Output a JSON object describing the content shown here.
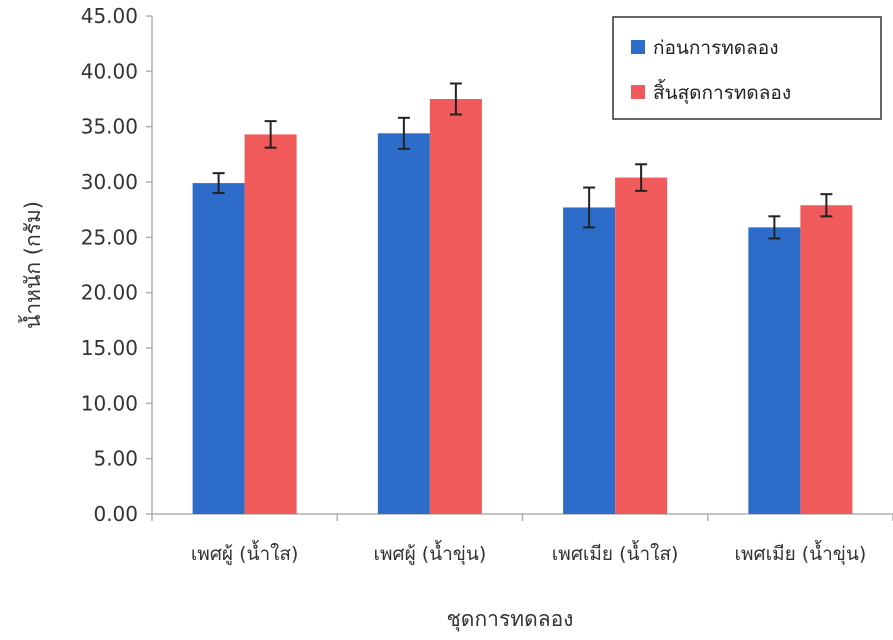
{
  "colors": {
    "before": "#2e6cc9",
    "after": "#f05a5a",
    "axis": "#b0b0b0",
    "error_bar": "#222222"
  },
  "chart_data": {
    "type": "bar",
    "title": "",
    "xlabel": "ชุดการทดลอง",
    "ylabel": "น้ำหนัก (กรัม)",
    "ylim": [
      0,
      45
    ],
    "yticks": [
      "0.00",
      "5.00",
      "10.00",
      "15.00",
      "20.00",
      "25.00",
      "30.00",
      "35.00",
      "40.00",
      "45.00"
    ],
    "categories": [
      "เพศผู้ (น้ำใส)",
      "เพศผู้ (น้ำขุ่น)",
      "เพศเมีย (น้ำใส)",
      "เพศเมีย (น้ำขุ่น)"
    ],
    "series": [
      {
        "name": "ก่อนการทดลอง",
        "values": [
          29.9,
          34.4,
          27.7,
          25.9
        ],
        "errors": [
          0.9,
          1.4,
          1.8,
          1.0
        ]
      },
      {
        "name": "สิ้นสุดการทดลอง",
        "values": [
          34.3,
          37.5,
          30.4,
          27.9
        ],
        "errors": [
          1.2,
          1.4,
          1.2,
          1.0
        ]
      }
    ],
    "legend_position": "top-right",
    "grid": false,
    "error_bars": true
  }
}
